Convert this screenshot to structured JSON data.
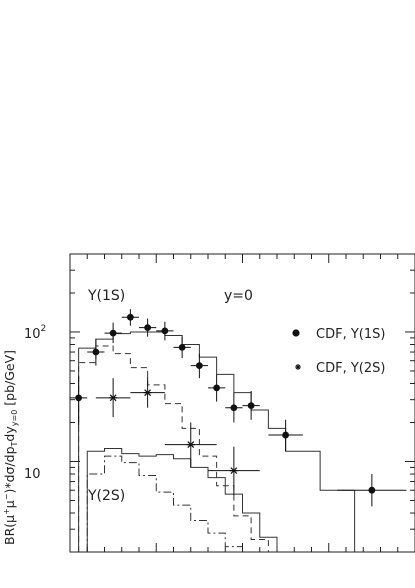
{
  "chart_data": {
    "type": "scatter",
    "ylabel_parts": [
      "BR(μ",
      "+",
      "μ",
      "−",
      ")*dσ/dp",
      "T",
      "dy",
      "y=0",
      " [pb/GeV]"
    ],
    "y_scale": "log",
    "ylim": [
      2,
      400
    ],
    "xlim": [
      0,
      20
    ],
    "y_ticks": [
      {
        "value": 100,
        "base": "10",
        "exp": "2"
      },
      {
        "value": 10,
        "base": "10",
        "exp": ""
      }
    ],
    "annotations": {
      "upsilon1s": "Υ(1S)",
      "y0": "y=0",
      "upsilon2s": "Υ(2S)"
    },
    "legend": {
      "position": "right",
      "entries": [
        {
          "marker": "circle",
          "label": "CDF, Υ(1S)"
        },
        {
          "marker": "star",
          "label": "CDF, Υ(2S)"
        }
      ]
    },
    "series": [
      {
        "name": "CDF, Υ(1S)",
        "marker": "circle",
        "points": [
          {
            "x": 0.5,
            "y": 31,
            "xerr": 0.5,
            "yerr": [
              19,
              46
            ]
          },
          {
            "x": 1.5,
            "y": 70,
            "xerr": 0.5,
            "yerr": [
              55,
              88
            ]
          },
          {
            "x": 2.5,
            "y": 98,
            "xerr": 0.5,
            "yerr": [
              82,
              118
            ]
          },
          {
            "x": 3.5,
            "y": 130,
            "xerr": 0.5,
            "yerr": [
              112,
              150
            ]
          },
          {
            "x": 4.5,
            "y": 108,
            "xerr": 0.5,
            "yerr": [
              92,
              127
            ]
          },
          {
            "x": 5.5,
            "y": 102,
            "xerr": 0.5,
            "yerr": [
              86,
              120
            ]
          },
          {
            "x": 6.5,
            "y": 76,
            "xerr": 0.5,
            "yerr": [
              63,
              92
            ]
          },
          {
            "x": 7.5,
            "y": 55,
            "xerr": 0.5,
            "yerr": [
              44,
              68
            ]
          },
          {
            "x": 8.5,
            "y": 37,
            "xerr": 0.5,
            "yerr": [
              29,
              47
            ]
          },
          {
            "x": 9.5,
            "y": 26,
            "xerr": 0.5,
            "yerr": [
              20,
              34
            ]
          },
          {
            "x": 10.5,
            "y": 27,
            "xerr": 0.5,
            "yerr": [
              21,
              35
            ]
          },
          {
            "x": 12.5,
            "y": 16,
            "xerr": 1.0,
            "yerr": [
              12,
              21
            ]
          },
          {
            "x": 17.5,
            "y": 6,
            "xerr": 2.0,
            "yerr": [
              4.5,
              8
            ]
          }
        ]
      },
      {
        "name": "CDF, Υ(2S)",
        "marker": "star",
        "points": [
          {
            "x": 2.5,
            "y": 31,
            "xerr": 1.0,
            "yerr": [
              22,
              44
            ]
          },
          {
            "x": 4.5,
            "y": 34,
            "xerr": 1.0,
            "yerr": [
              26,
              45
            ]
          },
          {
            "x": 7.0,
            "y": 13.5,
            "xerr": 1.5,
            "yerr": [
              9,
              20
            ]
          },
          {
            "x": 9.5,
            "y": 8.5,
            "xerr": 1.5,
            "yerr": [
              5.5,
              13
            ]
          }
        ]
      }
    ],
    "curves": [
      {
        "style": "solid",
        "edges": [
          0.5,
          1.5,
          2.5,
          3.5,
          4.5,
          5.5,
          6.5,
          7.5,
          8.5,
          9.5,
          10.5,
          11.5,
          12.5,
          14.5,
          16.5
        ],
        "values": [
          75,
          88,
          97,
          100,
          100,
          94,
          80,
          64,
          47,
          34,
          25,
          18,
          12,
          6
        ]
      },
      {
        "style": "dashed",
        "edges": [
          0.5,
          1.5,
          2.5,
          3.5,
          4.5,
          5.5,
          6.5,
          7.5,
          8.5,
          9.5,
          10.5,
          11.5,
          12.5
        ],
        "values": [
          58,
          78,
          68,
          53,
          39,
          28,
          18,
          11,
          6.5,
          3.8,
          2.5,
          2.0
        ]
      },
      {
        "style": "solid",
        "edges": [
          1.0,
          2.0,
          3.0,
          4.0,
          5.0,
          6.0,
          7.0,
          8.0,
          9.0,
          10.0,
          11.0,
          12.0
        ],
        "values": [
          12.0,
          12.6,
          11.5,
          11.0,
          11.3,
          10.5,
          9.0,
          7.5,
          5.6,
          4.0,
          2.6
        ]
      },
      {
        "style": "dashdot",
        "edges": [
          1.0,
          2.0,
          3.0,
          4.0,
          5.0,
          6.0,
          7.0,
          8.0,
          9.0,
          10.0
        ],
        "values": [
          8.0,
          11.0,
          9.8,
          7.8,
          5.8,
          4.6,
          3.5,
          2.8,
          2.2
        ]
      }
    ]
  }
}
